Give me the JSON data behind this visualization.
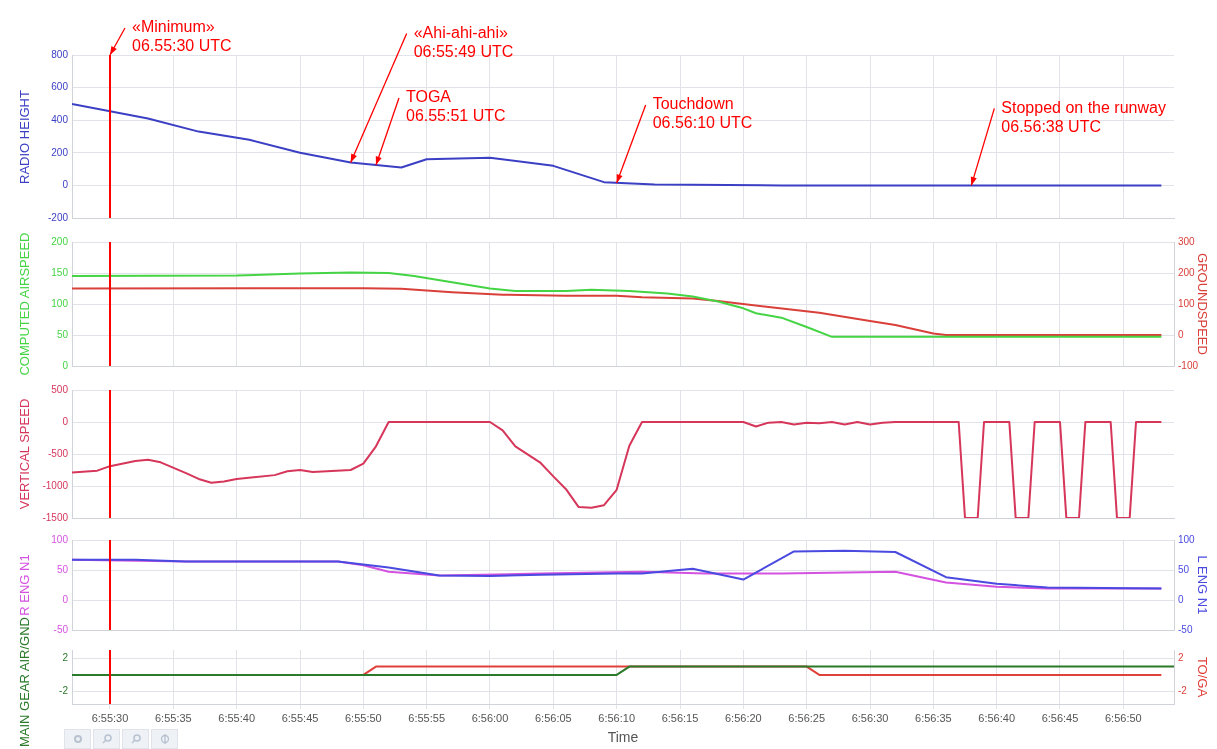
{
  "chart_data": [
    {
      "type": "line",
      "ylabel": "RADIO HEIGHT",
      "xlim": [
        6.924167,
        6.948333
      ],
      "xticks": [
        {
          "value": 6.925,
          "label": null
        },
        {
          "value": 6.926389,
          "label": null
        },
        {
          "value": 6.927778,
          "label": null
        },
        {
          "value": 6.929167,
          "label": null
        },
        {
          "value": 6.930556,
          "label": null
        },
        {
          "value": 6.931944,
          "label": null
        },
        {
          "value": 6.933333,
          "label": null
        },
        {
          "value": 6.934722,
          "label": null
        },
        {
          "value": 6.936111,
          "label": null
        },
        {
          "value": 6.9375,
          "label": null
        },
        {
          "value": 6.938889,
          "label": null
        },
        {
          "value": 6.940278,
          "label": null
        },
        {
          "value": 6.941667,
          "label": null
        },
        {
          "value": 6.943056,
          "label": null
        },
        {
          "value": 6.944444,
          "label": null
        },
        {
          "value": 6.945833,
          "label": null
        },
        {
          "value": 6.947222,
          "label": null
        }
      ],
      "ylim": [
        -200,
        800
      ],
      "yticks": [
        -200,
        0,
        200,
        400,
        600,
        800
      ],
      "grid": true,
      "tick_labels": "y",
      "ref_lines": [
        {
          "axis": "x",
          "value": 6.925,
          "color": "#ff0000"
        }
      ],
      "annotations": [
        {
          "text": "«Minimum»\n06.55:30 UTC",
          "x": 6.925,
          "y": 800
        },
        {
          "text": "«Ahi-ahi-ahi»\n06:55:49 UTC",
          "x": 6.930278,
          "y": 140
        },
        {
          "text": "TOGA\n06.55:51 UTC",
          "x": 6.930833,
          "y": 125
        },
        {
          "text": "Touchdown\n06.56:10 UTC",
          "x": 6.936111,
          "y": 15
        },
        {
          "text": "Stopped on the runway\n06.56:38 UTC",
          "x": 6.943889,
          "y": 0
        }
      ],
      "series": [
        {
          "color": "#3b3fc4",
          "x": [
            6.924167,
            6.925833,
            6.926944,
            6.928056,
            6.929167,
            6.930278,
            6.931389,
            6.931944,
            6.933333,
            6.934722,
            6.935833,
            6.936944,
            6.939722,
            6.948056
          ],
          "values": [
            500,
            410,
            330,
            280,
            200,
            140,
            110,
            160,
            170,
            120,
            20,
            5,
            0,
            0
          ]
        }
      ]
    },
    {
      "type": "line",
      "ylabel": "COMPUTED AIRSPEED",
      "y2label": "GROUNDSPEED",
      "xlim": [
        6.924167,
        6.948333
      ],
      "xticks": [
        {
          "value": 6.925,
          "label": null
        },
        {
          "value": 6.926389,
          "label": null
        },
        {
          "value": 6.927778,
          "label": null
        },
        {
          "value": 6.929167,
          "label": null
        },
        {
          "value": 6.930556,
          "label": null
        },
        {
          "value": 6.931944,
          "label": null
        },
        {
          "value": 6.933333,
          "label": null
        },
        {
          "value": 6.934722,
          "label": null
        },
        {
          "value": 6.936111,
          "label": null
        },
        {
          "value": 6.9375,
          "label": null
        },
        {
          "value": 6.938889,
          "label": null
        },
        {
          "value": 6.940278,
          "label": null
        },
        {
          "value": 6.941667,
          "label": null
        },
        {
          "value": 6.943056,
          "label": null
        },
        {
          "value": 6.944444,
          "label": null
        },
        {
          "value": 6.945833,
          "label": null
        },
        {
          "value": 6.947222,
          "label": null
        }
      ],
      "ylim": [
        0,
        200
      ],
      "yticks": [
        0,
        50,
        100,
        150,
        200
      ],
      "y2lim": [
        -100,
        300
      ],
      "y2ticks": [
        -100,
        0,
        100,
        200,
        300
      ],
      "grid": true,
      "tick_labels": "y",
      "ref_lines": [
        {
          "axis": "x",
          "value": 6.925,
          "color": "#ff0000"
        }
      ],
      "series": [
        {
          "color": "#44d444",
          "x": [
            6.924167,
            6.927778,
            6.929167,
            6.930278,
            6.931111,
            6.931667,
            6.9325,
            6.933333,
            6.933889,
            6.935,
            6.935556,
            6.936389,
            6.937222,
            6.937778,
            6.938333,
            6.938889,
            6.939167,
            6.939722,
            6.940278,
            6.940833,
            6.948056
          ],
          "values": [
            145,
            146,
            149,
            151,
            150,
            145,
            135,
            125,
            121,
            121,
            123,
            121,
            117,
            112,
            104,
            93,
            85,
            78,
            63,
            47,
            47
          ]
        },
        {
          "color": "#d9403a",
          "axis": "y2",
          "x": [
            6.924167,
            6.930556,
            6.931389,
            6.9325,
            6.933611,
            6.935,
            6.936111,
            6.936667,
            6.937778,
            6.938333,
            6.939444,
            6.940556,
            6.941667,
            6.942222,
            6.943056,
            6.943333,
            6.948056
          ],
          "values": [
            150,
            151,
            149,
            138,
            130,
            127,
            127,
            122,
            118,
            110,
            90,
            72,
            45,
            32,
            5,
            0,
            0
          ]
        }
      ]
    },
    {
      "type": "line",
      "ylabel": "VERTICAL SPEED",
      "xlim": [
        6.924167,
        6.948333
      ],
      "xticks": [
        {
          "value": 6.925,
          "label": null
        },
        {
          "value": 6.926389,
          "label": null
        },
        {
          "value": 6.927778,
          "label": null
        },
        {
          "value": 6.929167,
          "label": null
        },
        {
          "value": 6.930556,
          "label": null
        },
        {
          "value": 6.931944,
          "label": null
        },
        {
          "value": 6.933333,
          "label": null
        },
        {
          "value": 6.934722,
          "label": null
        },
        {
          "value": 6.936111,
          "label": null
        },
        {
          "value": 6.9375,
          "label": null
        },
        {
          "value": 6.938889,
          "label": null
        },
        {
          "value": 6.940278,
          "label": null
        },
        {
          "value": 6.941667,
          "label": null
        },
        {
          "value": 6.943056,
          "label": null
        },
        {
          "value": 6.944444,
          "label": null
        },
        {
          "value": 6.945833,
          "label": null
        },
        {
          "value": 6.947222,
          "label": null
        }
      ],
      "ylim": [
        -1500,
        500
      ],
      "yticks": [
        -1500,
        -1000,
        -500,
        0,
        500
      ],
      "grid": true,
      "tick_labels": "y",
      "ref_lines": [
        {
          "axis": "x",
          "value": 6.925,
          "color": "#ff0000"
        }
      ],
      "series": [
        {
          "color": "#d6365a",
          "x": [
            6.924167,
            6.924722,
            6.925,
            6.925556,
            6.925833,
            6.926111,
            6.926667,
            6.926944,
            6.927222,
            6.9275,
            6.927778,
            6.928611,
            6.928889,
            6.929167,
            6.929444,
            6.930278,
            6.930556,
            6.930833,
            6.931111,
            6.933333,
            6.933611,
            6.933889,
            6.934444,
            6.934722,
            6.935,
            6.935278,
            6.935556,
            6.935833,
            6.936111,
            6.936389,
            6.936667,
            6.938889,
            6.939167,
            6.939444,
            6.939722,
            6.94,
            6.940278,
            6.940556,
            6.940833,
            6.941111,
            6.941389,
            6.941667,
            6.941944,
            6.942222,
            6.943611,
            6.94375,
            6.944028,
            6.944167,
            6.944722,
            6.944861,
            6.945139,
            6.945278,
            6.945833,
            6.945972,
            6.94625,
            6.946389,
            6.946944,
            6.947083,
            6.947361,
            6.9475,
            6.948056
          ],
          "values": [
            -790,
            -760,
            -690,
            -610,
            -590,
            -630,
            -800,
            -890,
            -950,
            -930,
            -890,
            -830,
            -770,
            -750,
            -780,
            -750,
            -650,
            -380,
            0,
            0,
            -130,
            -380,
            -640,
            -850,
            -1050,
            -1330,
            -1340,
            -1300,
            -1060,
            -370,
            0,
            0,
            -70,
            -10,
            0,
            -40,
            -10,
            -20,
            0,
            -40,
            0,
            -40,
            -10,
            0,
            0,
            -1500,
            -1500,
            0,
            0,
            -1500,
            -1500,
            0,
            0,
            -1500,
            -1500,
            0,
            0,
            -1500,
            -1500,
            0,
            0
          ]
        }
      ]
    },
    {
      "type": "line",
      "ylabel": "R ENG N1",
      "y2label": "L ENG N1",
      "xlim": [
        6.924167,
        6.948333
      ],
      "xticks": [
        {
          "value": 6.925,
          "label": null
        },
        {
          "value": 6.926389,
          "label": null
        },
        {
          "value": 6.927778,
          "label": null
        },
        {
          "value": 6.929167,
          "label": null
        },
        {
          "value": 6.930556,
          "label": null
        },
        {
          "value": 6.931944,
          "label": null
        },
        {
          "value": 6.933333,
          "label": null
        },
        {
          "value": 6.934722,
          "label": null
        },
        {
          "value": 6.936111,
          "label": null
        },
        {
          "value": 6.9375,
          "label": null
        },
        {
          "value": 6.938889,
          "label": null
        },
        {
          "value": 6.940278,
          "label": null
        },
        {
          "value": 6.941667,
          "label": null
        },
        {
          "value": 6.943056,
          "label": null
        },
        {
          "value": 6.944444,
          "label": null
        },
        {
          "value": 6.945833,
          "label": null
        },
        {
          "value": 6.947222,
          "label": null
        }
      ],
      "ylim": [
        -50,
        100
      ],
      "yticks": [
        -50,
        0,
        50,
        100
      ],
      "y2lim": [
        -50,
        100
      ],
      "y2ticks": [
        -50,
        0,
        50,
        100
      ],
      "grid": true,
      "tick_labels": "y",
      "ref_lines": [
        {
          "axis": "x",
          "value": 6.925,
          "color": "#ff0000"
        }
      ],
      "series": [
        {
          "color": "#4a4ae0",
          "axis": "y2",
          "x": [
            6.924167,
            6.925556,
            6.926667,
            6.93,
            6.931111,
            6.932222,
            6.933333,
            6.934444,
            6.936111,
            6.936667,
            6.937778,
            6.938889,
            6.94,
            6.941111,
            6.942222,
            6.943333,
            6.944444,
            6.945556,
            6.948056
          ],
          "values": [
            67,
            67,
            64,
            64,
            54,
            41,
            40,
            42,
            44,
            44,
            52,
            34,
            81,
            82,
            80,
            38,
            27,
            21,
            19
          ]
        },
        {
          "color": "#d452e0",
          "x": [
            6.924167,
            6.926667,
            6.93,
            6.930556,
            6.931111,
            6.932222,
            6.934444,
            6.936667,
            6.938056,
            6.939722,
            6.942222,
            6.943333,
            6.944444,
            6.945556,
            6.948056
          ],
          "values": [
            67,
            64,
            64,
            58,
            47,
            41,
            44,
            47,
            44,
            44,
            47,
            29,
            22,
            19,
            19
          ]
        }
      ]
    },
    {
      "type": "line",
      "ylabel": "MAIN GEAR AIR/GND",
      "y2label": "TO/GA",
      "xlabel": "Time",
      "xlim": [
        6.924167,
        6.948333
      ],
      "xticks": [
        {
          "value": 6.925,
          "label": "6:55:30"
        },
        {
          "value": 6.926389,
          "label": "6:55:35"
        },
        {
          "value": 6.927778,
          "label": "6:55:40"
        },
        {
          "value": 6.929167,
          "label": "6:55:45"
        },
        {
          "value": 6.930556,
          "label": "6:55:50"
        },
        {
          "value": 6.931944,
          "label": "6:55:55"
        },
        {
          "value": 6.933333,
          "label": "6:56:00"
        },
        {
          "value": 6.934722,
          "label": "6:56:05"
        },
        {
          "value": 6.936111,
          "label": "6:56:10"
        },
        {
          "value": 6.9375,
          "label": "6:56:15"
        },
        {
          "value": 6.938889,
          "label": "6:56:20"
        },
        {
          "value": 6.940278,
          "label": "6:56:25"
        },
        {
          "value": 6.941667,
          "label": "6:56:30"
        },
        {
          "value": 6.943056,
          "label": "6:56:35"
        },
        {
          "value": 6.944444,
          "label": "6:56:40"
        },
        {
          "value": 6.945833,
          "label": "6:56:45"
        },
        {
          "value": 6.947222,
          "label": "6:56:50"
        }
      ],
      "ylim": [
        -3.5,
        3
      ],
      "yticks": [
        -2,
        2
      ],
      "y2lim": [
        -3.5,
        3
      ],
      "y2ticks": [
        -2,
        2
      ],
      "grid": true,
      "ref_lines": [
        {
          "axis": "x",
          "value": 6.925,
          "color": "#ff0000"
        }
      ],
      "series": [
        {
          "color": "#2a7a2a",
          "x": [
            6.924167,
            6.936111,
            6.936389,
            6.948333
          ],
          "values": [
            0,
            0,
            1,
            1
          ]
        },
        {
          "color": "#e0403a",
          "axis": "y2",
          "x": [
            6.930556,
            6.930833,
            6.940278,
            6.940556,
            6.948056
          ],
          "values": [
            0,
            1,
            1,
            0,
            0
          ]
        }
      ]
    }
  ]
}
